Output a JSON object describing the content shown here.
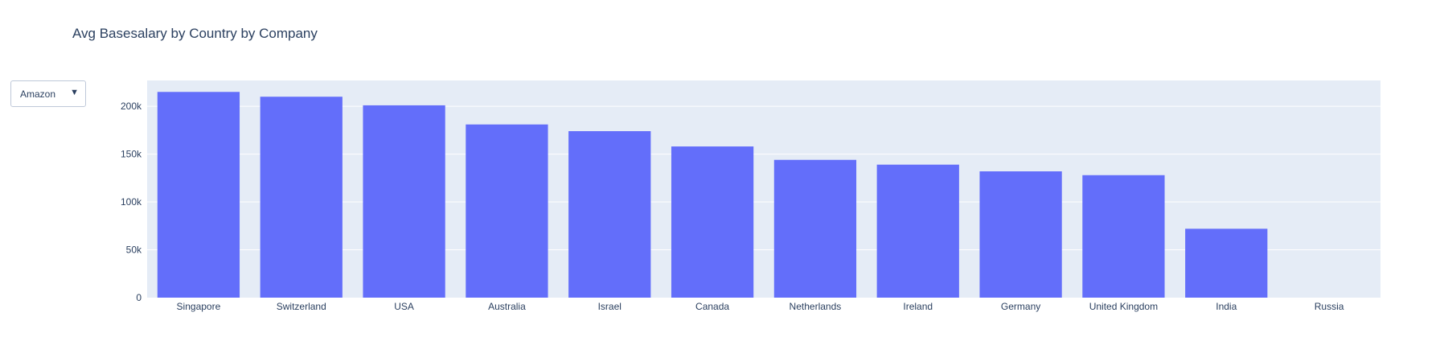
{
  "chart_data": {
    "type": "bar",
    "title": "Avg Basesalary by Country by Company",
    "xlabel": "",
    "ylabel": "",
    "categories": [
      "Singapore",
      "Switzerland",
      "USA",
      "Australia",
      "Israel",
      "Canada",
      "Netherlands",
      "Ireland",
      "Germany",
      "United Kingdom",
      "India",
      "Russia"
    ],
    "values": [
      215000,
      210000,
      201000,
      181000,
      174000,
      158000,
      144000,
      139000,
      132000,
      128000,
      72000,
      0
    ],
    "ylim": [
      0,
      227000
    ],
    "yticks": [
      0,
      50000,
      100000,
      150000,
      200000
    ],
    "ytick_labels": [
      "0",
      "50k",
      "100k",
      "150k",
      "200k"
    ],
    "grid": true,
    "legend": "none",
    "bar_color": "#636efa",
    "plot_bg": "#e5ecf6"
  },
  "controls": {
    "company_dropdown": {
      "selected": "Amazon",
      "arrow": "▼"
    }
  }
}
